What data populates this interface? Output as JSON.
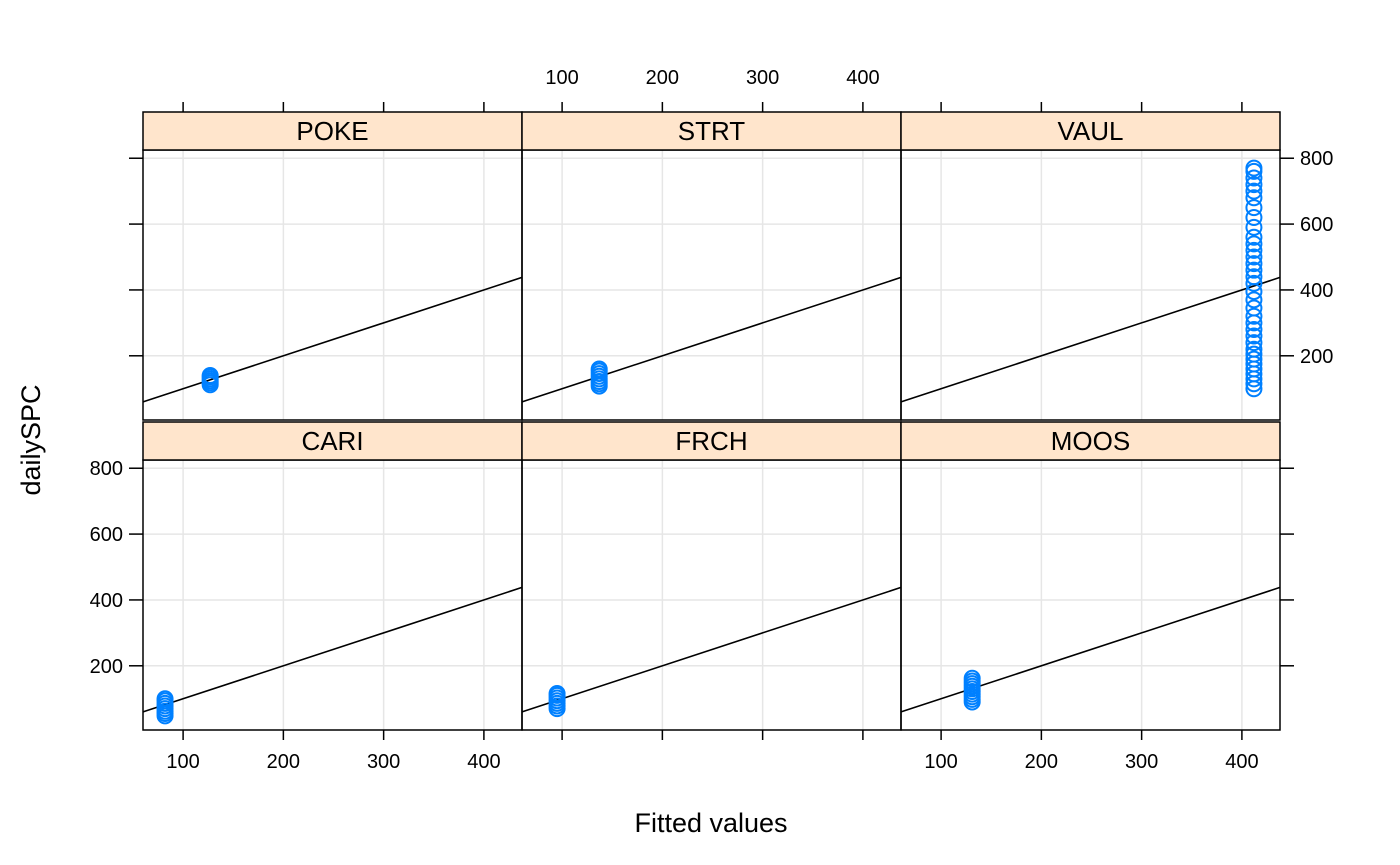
{
  "chart_data": {
    "type": "scatter",
    "layout": "trellis 3x2",
    "xlabel": "Fitted values",
    "ylabel": "dailySPC",
    "xlim": [
      60,
      438
    ],
    "ylim": [
      5,
      825
    ],
    "x_ticks": [
      100,
      200,
      300,
      400
    ],
    "y_ticks": [
      200,
      400,
      600,
      800
    ],
    "grid": true,
    "reference_line": {
      "type": "y=x"
    },
    "colors": {
      "points": "#0080ff",
      "strip_fill": "#ffe5cc",
      "grid": "#e6e6e6",
      "axis": "#000000"
    },
    "panels": [
      {
        "name": "POKE",
        "x": 127,
        "y_values": [
          112,
          118,
          124,
          130,
          136,
          140
        ]
      },
      {
        "name": "STRT",
        "x": 137,
        "y_values": [
          108,
          115,
          122,
          130,
          138,
          146,
          154,
          160
        ]
      },
      {
        "name": "VAUL",
        "x": 412,
        "y_values": [
          100,
          115,
          130,
          145,
          160,
          175,
          190,
          205,
          220,
          240,
          260,
          280,
          300,
          320,
          345,
          370,
          395,
          420,
          440,
          460,
          480,
          500,
          520,
          540,
          560,
          590,
          620,
          650,
          680,
          700,
          720,
          740,
          760,
          770
        ]
      },
      {
        "name": "CARI",
        "x": 82,
        "y_values": [
          48,
          55,
          62,
          70,
          78,
          86,
          94,
          100
        ]
      },
      {
        "name": "FRCH",
        "x": 95,
        "y_values": [
          70,
          78,
          86,
          94,
          102,
          110,
          116
        ]
      },
      {
        "name": "MOOS",
        "x": 131,
        "y_values": [
          90,
          98,
          106,
          114,
          122,
          130,
          138,
          146,
          154,
          162
        ]
      }
    ]
  }
}
